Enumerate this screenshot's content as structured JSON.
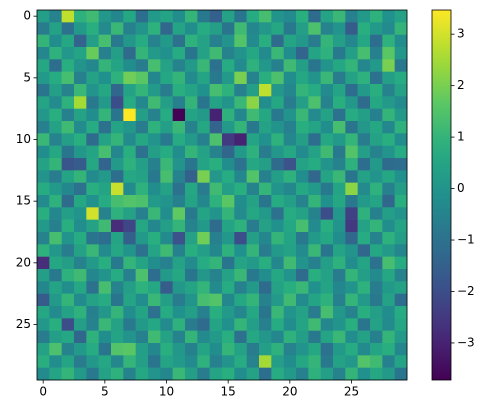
{
  "chart_data": {
    "type": "heatmap",
    "colormap": "viridis",
    "values": [
      [
        0.3,
        -0.5,
        2.8,
        0.9,
        1.2,
        0.1,
        -0.4,
        0.6,
        -1.1,
        0.2,
        0.5,
        -0.2,
        1.0,
        -0.8,
        -1.5,
        0.4,
        -0.9,
        0.7,
        1.3,
        0.0,
        -0.3,
        0.8,
        -1.2,
        0.5,
        1.1,
        -0.6,
        0.2,
        0.9,
        -0.1,
        0.4
      ],
      [
        -0.7,
        0.4,
        -1.0,
        0.2,
        0.8,
        -0.3,
        1.1,
        -0.6,
        0.0,
        0.9,
        -1.3,
        0.5,
        -0.2,
        0.7,
        0.3,
        -0.9,
        1.2,
        -0.4,
        0.1,
        0.6,
        -0.8,
        0.3,
        1.4,
        -0.5,
        0.0,
        -1.6,
        0.8,
        0.2,
        -0.3,
        1.0
      ],
      [
        1.0,
        -0.2,
        0.6,
        -1.4,
        0.3,
        1.3,
        -0.8,
        0.1,
        0.7,
        -0.5,
        0.2,
        -1.0,
        0.9,
        0.4,
        -0.6,
        0.0,
        1.5,
        -0.3,
        0.8,
        -1.2,
        0.5,
        0.1,
        -0.7,
        1.0,
        0.3,
        -0.4,
        0.6,
        -1.1,
        0.9,
        -0.2
      ],
      [
        -0.4,
        0.9,
        0.1,
        0.5,
        1.8,
        -0.6,
        0.3,
        -1.2,
        1.0,
        0.2,
        -0.1,
        0.7,
        -0.9,
        0.4,
        1.2,
        -0.5,
        0.0,
        0.6,
        -0.3,
        1.1,
        -0.2,
        -1.4,
        0.5,
        0.9,
        -0.8,
        0.3,
        1.3,
        -0.6,
        1.6,
        0.1
      ],
      [
        0.6,
        -1.1,
        0.8,
        0.0,
        -0.4,
        1.0,
        0.5,
        -0.2,
        -0.7,
        1.3,
        0.4,
        -0.5,
        0.2,
        1.1,
        -1.0,
        0.7,
        -0.3,
        0.9,
        0.1,
        -0.6,
        1.2,
        0.3,
        -0.9,
        0.0,
        0.6,
        1.0,
        -0.4,
        0.2,
        2.0,
        -0.8
      ],
      [
        0.2,
        0.7,
        1.3,
        -0.6,
        0.4,
        -0.1,
        0.9,
        1.9,
        1.6,
        -0.4,
        0.6,
        1.0,
        -0.3,
        0.5,
        -0.8,
        0.2,
        2.0,
        -0.5,
        0.8,
        1.4,
        -0.2,
        0.6,
        0.0,
        1.1,
        -0.7,
        0.4,
        0.9,
        -1.0,
        0.3,
        0.7
      ],
      [
        -0.9,
        0.3,
        -0.5,
        1.1,
        0.0,
        0.6,
        -1.3,
        0.4,
        1.0,
        0.2,
        -0.7,
        0.8,
        0.5,
        -0.1,
        1.3,
        0.9,
        -0.6,
        0.3,
        2.8,
        0.1,
        -0.4,
        1.0,
        0.7,
        -0.3,
        0.5,
        -1.1,
        0.2,
        0.8,
        -0.5,
        0.4
      ],
      [
        0.5,
        -0.3,
        0.9,
        2.5,
        -0.8,
        0.2,
        -2.0,
        0.7,
        -0.4,
        1.2,
        0.3,
        -0.6,
        1.0,
        -0.9,
        0.4,
        0.0,
        1.1,
        2.2,
        -0.2,
        0.6,
        -0.7,
        0.3,
        1.4,
        -0.5,
        0.8,
        0.1,
        -1.2,
        0.6,
        0.2,
        -0.3
      ],
      [
        0.1,
        0.8,
        -0.6,
        0.4,
        -0.2,
        1.0,
        -0.9,
        3.47,
        0.3,
        -0.5,
        0.7,
        -3.7,
        0.5,
        0.2,
        -3.0,
        0.9,
        -0.4,
        1.2,
        0.6,
        -0.8,
        0.0,
        1.1,
        -0.3,
        0.4,
        -1.0,
        0.7,
        0.3,
        -0.6,
        1.0,
        0.2
      ],
      [
        -0.6,
        0.4,
        1.2,
        -0.3,
        0.7,
        -1.0,
        0.5,
        0.1,
        -0.7,
        0.9,
        0.3,
        1.1,
        -0.5,
        0.6,
        -1.4,
        0.2,
        1.0,
        -0.8,
        0.4,
        0.0,
        -0.6,
        0.8,
        0.5,
        -0.2,
        1.3,
        -0.9,
        0.1,
        0.6,
        -0.4,
        0.9
      ],
      [
        1.1,
        -0.5,
        0.3,
        0.8,
        -1.2,
        0.4,
        1.0,
        -0.3,
        0.6,
        0.0,
        -0.8,
        0.7,
        0.2,
        -0.6,
        1.4,
        -2.5,
        -3.0,
        0.5,
        -0.1,
        0.9,
        -0.4,
        0.3,
        -1.1,
        0.6,
        0.2,
        1.0,
        -0.7,
        0.4,
        0.8,
        -0.2
      ],
      [
        -0.2,
        0.6,
        -0.9,
        0.1,
        0.5,
        1.3,
        -0.4,
        0.8,
        -1.0,
        0.3,
        0.7,
        -0.2,
        1.0,
        0.4,
        -0.5,
        -1.3,
        0.2,
        0.9,
        -0.7,
        0.1,
        0.6,
        -0.3,
        0.4,
        1.2,
        -0.8,
        1.5,
        0.3,
        -0.5,
        0.0,
        0.7
      ],
      [
        0.4,
        1.0,
        -1.8,
        -1.6,
        0.6,
        -1.4,
        0.2,
        0.9,
        0.3,
        -0.6,
        1.1,
        0.0,
        -0.9,
        0.5,
        0.8,
        -0.2,
        -1.0,
        0.6,
        0.3,
        -1.2,
        -1.9,
        0.4,
        0.7,
        0.0,
        -0.5,
        0.9,
        -1.1,
        0.2,
        -1.2,
        -1.1
      ],
      [
        0.0,
        -0.7,
        0.5,
        1.0,
        -0.3,
        0.2,
        -1.1,
        0.6,
        0.4,
        -0.8,
        1.3,
        -0.5,
        -1.5,
        2.0,
        0.1,
        0.7,
        -0.4,
        1.5,
        -0.6,
        0.3,
        0.9,
        -0.2,
        -1.3,
        0.5,
        1.1,
        -0.9,
        0.4,
        0.0,
        0.6,
        -0.1
      ],
      [
        0.7,
        0.2,
        -0.4,
        -1.0,
        0.8,
        0.5,
        2.9,
        -0.3,
        0.9,
        -0.2,
        0.4,
        -1.0,
        0.6,
        -0.7,
        1.2,
        0.3,
        0.8,
        -0.5,
        1.0,
        0.0,
        -0.4,
        0.6,
        0.2,
        -0.8,
        0.5,
        2.2,
        -0.3,
        0.9,
        -0.6,
        0.3
      ],
      [
        -0.3,
        0.9,
        -1.2,
        0.6,
        -0.1,
        0.7,
        1.3,
        1.5,
        1.4,
        0.2,
        0.0,
        -0.6,
        0.5,
        -0.4,
        0.9,
        1.6,
        -0.2,
        0.4,
        -0.9,
        0.7,
        0.3,
        -0.5,
        1.0,
        -0.1,
        0.6,
        -0.8,
        0.2,
        0.5,
        -1.3,
        0.8
      ],
      [
        0.8,
        -0.4,
        0.3,
        0.0,
        3.0,
        -0.5,
        0.9,
        0.4,
        -0.6,
        1.1,
        -0.2,
        1.7,
        -0.8,
        0.5,
        0.0,
        1.0,
        -0.3,
        0.6,
        0.2,
        -1.0,
        0.7,
        0.4,
        -0.5,
        -2.0,
        0.1,
        -2.3,
        0.9,
        -0.6,
        0.3,
        0.0
      ],
      [
        0.2,
        -0.6,
        0.8,
        -0.2,
        0.4,
        1.2,
        -2.8,
        -2.2,
        0.6,
        -0.4,
        0.3,
        1.0,
        -0.5,
        0.2,
        -1.2,
        0.5,
        0.9,
        -0.7,
        0.4,
        -0.1,
        0.6,
        1.3,
        -0.3,
        0.8,
        0.0,
        -2.5,
        0.4,
        1.0,
        -0.2,
        0.5
      ],
      [
        -0.5,
        1.3,
        0.0,
        0.7,
        -0.9,
        -1.1,
        0.5,
        -1.5,
        0.2,
        0.8,
        -0.3,
        -1.9,
        0.4,
        1.9,
        -0.6,
        0.1,
        -2.0,
        0.3,
        -0.4,
        1.0,
        0.5,
        -0.8,
        0.2,
        0.6,
        -0.2,
        -1.3,
        0.7,
        -0.5,
        0.9,
        0.3
      ],
      [
        0.9,
        0.1,
        -0.7,
        0.4,
        1.1,
        -0.3,
        0.6,
        0.0,
        -1.0,
        0.5,
        1.2,
        -0.6,
        0.8,
        0.3,
        -0.4,
        0.9,
        -0.1,
        1.0,
        -0.7,
        0.2,
        0.4,
        -0.3,
        1.1,
        -0.9,
        0.5,
        0.0,
        -1.3,
        0.6,
        0.2,
        -0.4
      ],
      [
        -2.8,
        0.6,
        0.3,
        -0.5,
        0.2,
        0.8,
        -0.8,
        1.0,
        0.5,
        -0.2,
        -0.6,
        0.4,
        -0.3,
        0.7,
        1.0,
        -0.9,
        0.5,
        0.2,
        0.8,
        -0.4,
        1.2,
        0.0,
        -0.6,
        0.3,
        0.9,
        -0.2,
        0.5,
        -1.0,
        1.3,
        0.7
      ],
      [
        0.3,
        -0.8,
        0.9,
        1.2,
        -0.4,
        0.0,
        0.7,
        -0.6,
        1.4,
        -1.1,
        0.2,
        0.6,
        -0.9,
        0.1,
        -0.5,
        0.4,
        1.1,
        -0.8,
        -0.2,
        0.6,
        0.0,
        -1.2,
        0.8,
        0.4,
        -0.7,
        1.0,
        0.3,
        -0.3,
        0.6,
        -0.5
      ],
      [
        -0.4,
        0.5,
        -0.2,
        0.6,
        -1.0,
        1.3,
        -0.5,
        0.3,
        0.9,
        0.6,
        -1.6,
        0.1,
        0.5,
        1.0,
        -0.3,
        0.7,
        -0.6,
        0.2,
        -1.2,
        0.4,
        0.8,
        1.1,
        -0.1,
        0.5,
        -0.4,
        0.0,
        0.9,
        -0.7,
        0.2,
        0.4
      ],
      [
        -1.6,
        0.2,
        1.0,
        -0.3,
        0.4,
        0.7,
        -0.9,
        0.5,
        -0.2,
        1.1,
        0.3,
        -0.7,
        0.0,
        1.3,
        1.5,
        -0.4,
        0.6,
        1.0,
        -0.5,
        0.2,
        1.2,
        -0.3,
        0.5,
        0.9,
        -0.6,
        1.0,
        0.2,
        -0.8,
        0.4,
        -1.1
      ],
      [
        0.6,
        -0.3,
        0.4,
        0.9,
        -0.6,
        0.1,
        1.0,
        -0.2,
        0.5,
        -1.0,
        0.7,
        -0.1,
        0.3,
        -0.6,
        0.8,
        0.2,
        -0.4,
        0.6,
        -0.9,
        1.1,
        0.0,
        0.4,
        -0.7,
        1.3,
        0.1,
        -0.5,
        0.8,
        0.3,
        -0.2,
        0.7
      ],
      [
        0.1,
        0.8,
        -2.0,
        0.3,
        -0.5,
        1.1,
        0.4,
        -0.8,
        0.2,
        0.6,
        -0.3,
        0.9,
        -0.7,
        -1.2,
        0.5,
        -0.1,
        1.0,
        0.3,
        -0.6,
        0.7,
        -0.2,
        0.5,
        1.2,
        -0.4,
        0.0,
        0.8,
        -0.9,
        0.4,
        -0.3,
        0.6
      ],
      [
        -0.7,
        0.3,
        0.6,
        -1.3,
        0.9,
        -0.2,
        0.5,
        0.0,
        -0.6,
        1.2,
        0.4,
        -0.5,
        1.0,
        -0.3,
        0.2,
        0.8,
        -1.0,
        0.6,
        0.1,
        -0.4,
        0.9,
        0.3,
        -0.8,
        0.5,
        1.1,
        -0.2,
        0.4,
        -0.6,
        1.0,
        0.2
      ],
      [
        0.4,
        1.4,
        -0.5,
        0.2,
        0.7,
        -0.9,
        1.5,
        1.6,
        0.3,
        -0.4,
        0.8,
        0.1,
        -0.6,
        0.5,
        -0.2,
        1.0,
        0.4,
        -0.7,
        0.3,
        0.9,
        -0.5,
        0.0,
        0.6,
        -1.0,
        0.2,
        0.7,
        -0.3,
        0.5,
        0.8,
        -0.4
      ],
      [
        0.8,
        -0.2,
        0.5,
        -0.7,
        0.1,
        0.6,
        -0.4,
        1.0,
        0.3,
        -0.9,
        0.5,
        0.2,
        -0.3,
        0.9,
        -0.6,
        0.0,
        0.7,
        -0.5,
        2.5,
        0.3,
        -0.2,
        0.6,
        1.0,
        -0.8,
        0.4,
        0.1,
        1.5,
        1.2,
        -0.6,
        0.5
      ],
      [
        -0.3,
        0.5,
        1.0,
        0.2,
        -0.8,
        0.4,
        0.9,
        -0.5,
        0.6,
        0.0,
        -0.4,
        1.1,
        0.3,
        -0.7,
        0.5,
        0.8,
        -0.2,
        0.4,
        -1.1,
        0.7,
        0.2,
        -0.6,
        0.9,
        0.3,
        -0.5,
        1.0,
        -0.1,
        0.6,
        0.2,
        -0.9
      ]
    ],
    "xlim": [
      -0.5,
      29.5
    ],
    "ylim": [
      29.5,
      -0.5
    ],
    "xticks": [
      0,
      5,
      10,
      15,
      20,
      25
    ],
    "yticks": [
      0,
      5,
      10,
      15,
      20,
      25
    ],
    "vlim": [
      -3.72,
      3.47
    ],
    "cticks": [
      {
        "value": -3,
        "label": "−3"
      },
      {
        "value": -2,
        "label": "−2"
      },
      {
        "value": -1,
        "label": "−1"
      },
      0,
      1,
      2,
      3
    ]
  }
}
